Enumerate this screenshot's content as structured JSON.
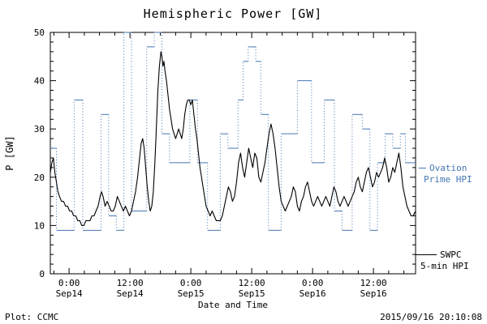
{
  "footer": {
    "source": "Plot: CCMC",
    "timestamp": "2015/09/16 20:10:08"
  },
  "legend": {
    "ovation": {
      "line1": "Ovation",
      "line2": "Prime HPI",
      "color": "#4576b4"
    },
    "swpc": {
      "line1": "SWPC",
      "line2": "5-min HPI",
      "color": "#000000"
    }
  },
  "colors": {
    "ovation": "#4576b4",
    "swpc": "#000000",
    "axis": "#000000",
    "background": "#ffffff"
  },
  "chart_data": {
    "type": "line",
    "title": "Hemispheric Power [GW]",
    "xlabel": "Date and Time",
    "ylabel": "P [GW]",
    "ylim": [
      0,
      50
    ],
    "xlim": [
      -3.7,
      68.3
    ],
    "x_unit": "hours since 2015-09-14 00:00 UT",
    "grid": false,
    "legend_position": "right",
    "y_ticks": [
      0,
      10,
      20,
      30,
      40,
      50
    ],
    "x_ticks": [
      {
        "t": 0,
        "line1": "0:00",
        "line2": "Sep14"
      },
      {
        "t": 12,
        "line1": "12:00",
        "line2": "Sep14"
      },
      {
        "t": 24,
        "line1": "0:00",
        "line2": "Sep15"
      },
      {
        "t": 36,
        "line1": "12:00",
        "line2": "Sep15"
      },
      {
        "t": 48,
        "line1": "0:00",
        "line2": "Sep16"
      },
      {
        "t": 60,
        "line1": "12:00",
        "line2": "Sep16"
      }
    ],
    "x_minor_step": 3,
    "y_minor_step": 2,
    "series": [
      {
        "name": "SWPC 5-min HPI",
        "style": "solid-line",
        "color": "#000000",
        "points": [
          [
            -3.7,
            21
          ],
          [
            -3.4,
            23
          ],
          [
            -3.1,
            24
          ],
          [
            -2.8,
            21
          ],
          [
            -2.5,
            19
          ],
          [
            -2.2,
            17
          ],
          [
            -1.9,
            16
          ],
          [
            -1.5,
            15
          ],
          [
            -1.1,
            15
          ],
          [
            -0.7,
            14
          ],
          [
            -0.3,
            14
          ],
          [
            0.1,
            13
          ],
          [
            0.5,
            13
          ],
          [
            0.9,
            12
          ],
          [
            1.3,
            12
          ],
          [
            1.7,
            11
          ],
          [
            2.1,
            11
          ],
          [
            2.5,
            10
          ],
          [
            2.9,
            10
          ],
          [
            3.3,
            11
          ],
          [
            3.7,
            11
          ],
          [
            4.1,
            11
          ],
          [
            4.5,
            12
          ],
          [
            4.9,
            12
          ],
          [
            5.3,
            13
          ],
          [
            5.7,
            14
          ],
          [
            6.1,
            16
          ],
          [
            6.4,
            17
          ],
          [
            6.7,
            16
          ],
          [
            7.1,
            14
          ],
          [
            7.5,
            15
          ],
          [
            7.9,
            14
          ],
          [
            8.3,
            13
          ],
          [
            8.7,
            13
          ],
          [
            9.1,
            14
          ],
          [
            9.5,
            16
          ],
          [
            9.9,
            15
          ],
          [
            10.3,
            14
          ],
          [
            10.7,
            13
          ],
          [
            11.1,
            14
          ],
          [
            11.5,
            13
          ],
          [
            11.9,
            12
          ],
          [
            12.3,
            13
          ],
          [
            12.7,
            15
          ],
          [
            13.1,
            17
          ],
          [
            13.5,
            20
          ],
          [
            13.9,
            24
          ],
          [
            14.2,
            27
          ],
          [
            14.5,
            28
          ],
          [
            14.8,
            26
          ],
          [
            15.1,
            22
          ],
          [
            15.4,
            18
          ],
          [
            15.7,
            15
          ],
          [
            16.0,
            13
          ],
          [
            16.3,
            14
          ],
          [
            16.6,
            17
          ],
          [
            16.9,
            23
          ],
          [
            17.2,
            30
          ],
          [
            17.5,
            38
          ],
          [
            17.8,
            43
          ],
          [
            18.1,
            46
          ],
          [
            18.3,
            45
          ],
          [
            18.5,
            43
          ],
          [
            18.7,
            44
          ],
          [
            18.9,
            42
          ],
          [
            19.2,
            40
          ],
          [
            19.5,
            37
          ],
          [
            19.8,
            34
          ],
          [
            20.1,
            32
          ],
          [
            20.4,
            30
          ],
          [
            20.7,
            29
          ],
          [
            21.0,
            28
          ],
          [
            21.3,
            29
          ],
          [
            21.6,
            30
          ],
          [
            21.9,
            29
          ],
          [
            22.2,
            28
          ],
          [
            22.5,
            30
          ],
          [
            22.8,
            33
          ],
          [
            23.1,
            35
          ],
          [
            23.4,
            36
          ],
          [
            23.7,
            36
          ],
          [
            24.0,
            35
          ],
          [
            24.3,
            36
          ],
          [
            24.6,
            33
          ],
          [
            24.9,
            30
          ],
          [
            25.2,
            28
          ],
          [
            25.5,
            25
          ],
          [
            25.8,
            22
          ],
          [
            26.1,
            20
          ],
          [
            26.4,
            18
          ],
          [
            26.7,
            16
          ],
          [
            27.0,
            14
          ],
          [
            27.4,
            13
          ],
          [
            27.8,
            12
          ],
          [
            28.2,
            13
          ],
          [
            28.6,
            12
          ],
          [
            29.0,
            11
          ],
          [
            29.4,
            11
          ],
          [
            29.8,
            11
          ],
          [
            30.2,
            12
          ],
          [
            30.6,
            14
          ],
          [
            31.0,
            16
          ],
          [
            31.4,
            18
          ],
          [
            31.8,
            17
          ],
          [
            32.2,
            15
          ],
          [
            32.6,
            16
          ],
          [
            33.0,
            19
          ],
          [
            33.4,
            23
          ],
          [
            33.8,
            25
          ],
          [
            34.2,
            22
          ],
          [
            34.6,
            20
          ],
          [
            35.0,
            23
          ],
          [
            35.4,
            26
          ],
          [
            35.8,
            24
          ],
          [
            36.2,
            22
          ],
          [
            36.6,
            25
          ],
          [
            37.0,
            24
          ],
          [
            37.4,
            20
          ],
          [
            37.8,
            19
          ],
          [
            38.2,
            21
          ],
          [
            38.6,
            23
          ],
          [
            39.0,
            26
          ],
          [
            39.4,
            29
          ],
          [
            39.8,
            31
          ],
          [
            40.2,
            29
          ],
          [
            40.6,
            26
          ],
          [
            41.0,
            22
          ],
          [
            41.4,
            18
          ],
          [
            41.8,
            15
          ],
          [
            42.2,
            14
          ],
          [
            42.6,
            13
          ],
          [
            43.0,
            14
          ],
          [
            43.4,
            15
          ],
          [
            43.8,
            16
          ],
          [
            44.2,
            18
          ],
          [
            44.6,
            17
          ],
          [
            45.0,
            14
          ],
          [
            45.4,
            13
          ],
          [
            45.8,
            15
          ],
          [
            46.2,
            16
          ],
          [
            46.6,
            18
          ],
          [
            47.0,
            19
          ],
          [
            47.4,
            17
          ],
          [
            47.8,
            15
          ],
          [
            48.2,
            14
          ],
          [
            48.6,
            15
          ],
          [
            49.0,
            16
          ],
          [
            49.4,
            15
          ],
          [
            49.8,
            14
          ],
          [
            50.2,
            15
          ],
          [
            50.6,
            16
          ],
          [
            51.0,
            15
          ],
          [
            51.4,
            14
          ],
          [
            51.8,
            16
          ],
          [
            52.2,
            18
          ],
          [
            52.6,
            17
          ],
          [
            53.0,
            15
          ],
          [
            53.4,
            14
          ],
          [
            53.8,
            15
          ],
          [
            54.2,
            16
          ],
          [
            54.6,
            15
          ],
          [
            55.0,
            14
          ],
          [
            55.4,
            15
          ],
          [
            55.8,
            16
          ],
          [
            56.2,
            17
          ],
          [
            56.6,
            19
          ],
          [
            57.0,
            20
          ],
          [
            57.4,
            18
          ],
          [
            57.8,
            17
          ],
          [
            58.2,
            19
          ],
          [
            58.6,
            21
          ],
          [
            59.0,
            22
          ],
          [
            59.4,
            20
          ],
          [
            59.8,
            18
          ],
          [
            60.2,
            19
          ],
          [
            60.6,
            21
          ],
          [
            61.0,
            20
          ],
          [
            61.4,
            21
          ],
          [
            61.8,
            22
          ],
          [
            62.2,
            24
          ],
          [
            62.6,
            22
          ],
          [
            63.0,
            19
          ],
          [
            63.4,
            20
          ],
          [
            63.8,
            22
          ],
          [
            64.2,
            21
          ],
          [
            64.6,
            23
          ],
          [
            65.0,
            25
          ],
          [
            65.4,
            22
          ],
          [
            65.8,
            18
          ],
          [
            66.2,
            16
          ],
          [
            66.6,
            14
          ],
          [
            67.0,
            13
          ],
          [
            67.4,
            12
          ],
          [
            67.8,
            12
          ],
          [
            68.3,
            13
          ]
        ]
      },
      {
        "name": "Ovation Prime HPI",
        "style": "step-with-dotted-risers",
        "color": "#4576b4",
        "t_end": 68.3,
        "steps": [
          [
            -3.7,
            26
          ],
          [
            -2.5,
            9
          ],
          [
            1.0,
            36
          ],
          [
            2.7,
            9
          ],
          [
            6.3,
            33
          ],
          [
            7.8,
            12
          ],
          [
            9.3,
            9
          ],
          [
            10.8,
            50
          ],
          [
            12.3,
            13
          ],
          [
            15.3,
            47
          ],
          [
            16.8,
            50
          ],
          [
            18.3,
            29
          ],
          [
            19.8,
            23
          ],
          [
            23.8,
            36
          ],
          [
            25.3,
            23
          ],
          [
            27.3,
            9
          ],
          [
            29.8,
            29
          ],
          [
            31.3,
            26
          ],
          [
            33.3,
            36
          ],
          [
            34.3,
            44
          ],
          [
            35.3,
            47
          ],
          [
            36.8,
            44
          ],
          [
            37.8,
            33
          ],
          [
            39.3,
            9
          ],
          [
            41.8,
            29
          ],
          [
            45.0,
            40
          ],
          [
            47.8,
            23
          ],
          [
            50.3,
            36
          ],
          [
            52.3,
            13
          ],
          [
            53.8,
            9
          ],
          [
            55.8,
            33
          ],
          [
            57.8,
            30
          ],
          [
            59.3,
            9
          ],
          [
            60.8,
            23
          ],
          [
            62.3,
            29
          ],
          [
            63.8,
            26
          ],
          [
            65.3,
            29
          ],
          [
            66.3,
            23
          ]
        ]
      }
    ]
  }
}
